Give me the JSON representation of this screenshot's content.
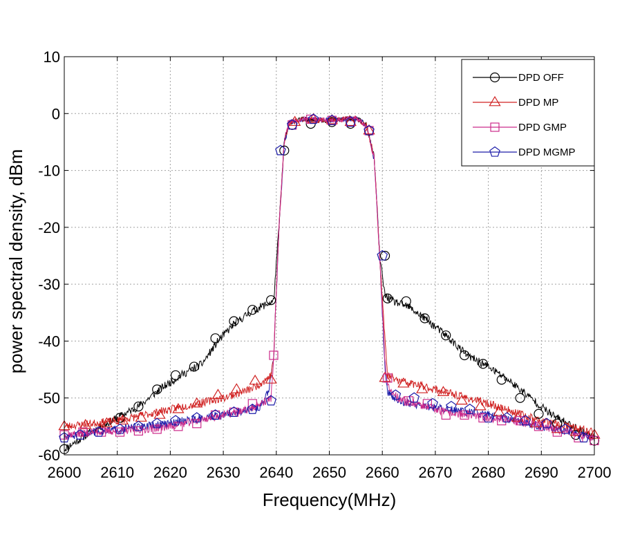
{
  "chart_data": {
    "type": "line",
    "xlabel": "Frequency(MHz)",
    "ylabel": "power spectral density, dBm",
    "xlim": [
      2600,
      2700
    ],
    "ylim": [
      -60,
      10
    ],
    "xticks": [
      2600,
      2610,
      2620,
      2630,
      2640,
      2650,
      2660,
      2670,
      2680,
      2690,
      2700
    ],
    "yticks": [
      10,
      0,
      -10,
      -20,
      -30,
      -40,
      -50,
      -60
    ],
    "grid": true,
    "legend_position": "top-right",
    "series": [
      {
        "name": "DPD OFF",
        "color": "#000000",
        "marker": "circle",
        "x": [
          2600,
          2605,
          2610,
          2614,
          2618,
          2622,
          2626,
          2629,
          2632,
          2635,
          2637,
          2639.5,
          2640.5,
          2641.5,
          2642.5,
          2645,
          2650,
          2655,
          2657,
          2658.5,
          2659.5,
          2660.5,
          2662,
          2665,
          2668,
          2672,
          2676,
          2680,
          2684,
          2688,
          2692,
          2696,
          2700
        ],
        "y": [
          -59,
          -56,
          -53.5,
          -51.5,
          -48.5,
          -46,
          -44,
          -40,
          -37,
          -35,
          -34,
          -33,
          -20,
          -5,
          -1.5,
          -1,
          -1.2,
          -0.8,
          -2,
          -8,
          -25,
          -32,
          -33,
          -34,
          -36,
          -39,
          -42.5,
          -44.5,
          -47,
          -50,
          -53,
          -55,
          -57
        ]
      },
      {
        "name": "DPD MP",
        "color": "#d02020",
        "marker": "triangle",
        "x": [
          2600,
          2605,
          2610,
          2615,
          2620,
          2625,
          2630,
          2635,
          2637,
          2639,
          2639.5,
          2640.5,
          2641.5,
          2642.5,
          2645,
          2650,
          2655,
          2657,
          2658.5,
          2659.5,
          2660.5,
          2661,
          2663,
          2668,
          2672,
          2676,
          2680,
          2685,
          2690,
          2695,
          2700
        ],
        "y": [
          -55,
          -54.5,
          -54,
          -53,
          -52,
          -51,
          -50,
          -48.5,
          -47.5,
          -46,
          -43,
          -20,
          -5,
          -1.5,
          -1,
          -1.2,
          -0.8,
          -2,
          -8,
          -25,
          -40,
          -46,
          -47,
          -48,
          -49,
          -50,
          -51,
          -52.5,
          -54,
          -55,
          -56
        ]
      },
      {
        "name": "DPD GMP",
        "color": "#cc2a8a",
        "marker": "square",
        "x": [
          2600,
          2605,
          2610,
          2615,
          2620,
          2625,
          2630,
          2635,
          2637,
          2639,
          2639.5,
          2640.5,
          2641.5,
          2642.5,
          2645,
          2650,
          2655,
          2657,
          2658.5,
          2659.5,
          2660.5,
          2661,
          2663,
          2668,
          2672,
          2676,
          2680,
          2685,
          2690,
          2695,
          2700
        ],
        "y": [
          -56.5,
          -56,
          -55.8,
          -55.5,
          -55,
          -54,
          -53,
          -52,
          -51,
          -50,
          -43,
          -20,
          -5,
          -1.5,
          -1,
          -1.2,
          -0.8,
          -2,
          -8,
          -25,
          -44,
          -48,
          -50,
          -51.5,
          -52.5,
          -53,
          -53.5,
          -54,
          -55,
          -56,
          -57
        ]
      },
      {
        "name": "DPD MGMP",
        "color": "#1a1aa8",
        "marker": "pentagon",
        "x": [
          2600,
          2605,
          2610,
          2615,
          2620,
          2625,
          2630,
          2635,
          2637,
          2638.5,
          2639.5,
          2640.5,
          2641.5,
          2642.5,
          2645,
          2650,
          2655,
          2657,
          2658.5,
          2659.5,
          2660.5,
          2661,
          2663,
          2668,
          2672,
          2676,
          2680,
          2685,
          2690,
          2695,
          2700
        ],
        "y": [
          -57,
          -56,
          -55.5,
          -55,
          -54.5,
          -53.5,
          -53,
          -52,
          -51.5,
          -49,
          -43,
          -20,
          -5,
          -1.5,
          -1,
          -1.2,
          -0.8,
          -2,
          -8,
          -25,
          -45,
          -49,
          -50.5,
          -51.5,
          -52,
          -52.5,
          -53,
          -54,
          -55,
          -56,
          -57
        ]
      }
    ],
    "markers": [
      {
        "series": 0,
        "x": [
          2600,
          2610.5,
          2614,
          2617.5,
          2621,
          2624.5,
          2628.5,
          2632,
          2635.5,
          2639,
          2641.5,
          2643,
          2646.5,
          2650.5,
          2654,
          2657.5,
          2660.5,
          2661,
          2664.5,
          2668,
          2672,
          2675.5,
          2679,
          2682.5,
          2686,
          2689.5,
          2693,
          2696.5,
          2700
        ],
        "y": [
          -59,
          -53.5,
          -51.5,
          -48.5,
          -46,
          -44.5,
          -39.5,
          -36.5,
          -34.5,
          -32.8,
          -6.5,
          -2,
          -1.8,
          -1.5,
          -1.8,
          -3,
          -25,
          -32.5,
          -33,
          -36,
          -39,
          -42.5,
          -44,
          -46.8,
          -50,
          -52.8,
          -54.5,
          -56.5,
          -57.5
        ]
      },
      {
        "series": 1,
        "x": [
          2600,
          2604,
          2608,
          2611,
          2614.5,
          2618,
          2621.5,
          2625,
          2629,
          2632.5,
          2636,
          2639,
          2643.5,
          2647,
          2650.5,
          2654,
          2657.5,
          2660.5,
          2664,
          2667.5,
          2671.5,
          2675,
          2678.5,
          2682,
          2685.5,
          2689,
          2693,
          2696.5,
          2700
        ],
        "y": [
          -55,
          -54.8,
          -54.5,
          -54,
          -53.5,
          -53,
          -52,
          -51,
          -49.5,
          -48.5,
          -47,
          -46.8,
          -1.5,
          -1,
          -1.2,
          -1.5,
          -3,
          -46.5,
          -47.5,
          -48.5,
          -49,
          -50.5,
          -51.5,
          -52.5,
          -53.5,
          -54.5,
          -55.5,
          -56,
          -56.5
        ]
      },
      {
        "series": 2,
        "x": [
          2600,
          2603.5,
          2607,
          2610.5,
          2614,
          2617.5,
          2621.5,
          2625,
          2628.5,
          2632,
          2635.5,
          2639.5,
          2643,
          2646.5,
          2650.5,
          2654,
          2657.5,
          2661,
          2665,
          2668.5,
          2672,
          2675.5,
          2679,
          2682.5,
          2686,
          2689.5,
          2693,
          2697,
          2700
        ],
        "y": [
          -56.5,
          -56,
          -56,
          -56,
          -55.8,
          -55.5,
          -55,
          -54.5,
          -53,
          -52.5,
          -51,
          -42.5,
          -2,
          -1,
          -1.2,
          -1.5,
          -3,
          -46.5,
          -50.5,
          -51,
          -53,
          -53,
          -53.5,
          -54,
          -54,
          -55,
          -56,
          -57,
          -57.5
        ]
      },
      {
        "series": 3,
        "x": [
          2600,
          2603,
          2606.5,
          2610.5,
          2614,
          2617.5,
          2621,
          2625,
          2628.5,
          2632,
          2635.5,
          2639,
          2640.8,
          2643,
          2647,
          2650.5,
          2654,
          2657.5,
          2660,
          2662.5,
          2666,
          2669.5,
          2673,
          2676.5,
          2680,
          2683.5,
          2687,
          2691,
          2694.5,
          2698
        ],
        "y": [
          -57,
          -56.5,
          -56,
          -55.5,
          -55,
          -54.5,
          -54,
          -53.5,
          -53,
          -52.5,
          -52,
          -50.5,
          -6.5,
          -2,
          -1,
          -1.2,
          -1.5,
          -3,
          -25,
          -49.5,
          -50,
          -51,
          -51.5,
          -52,
          -53.5,
          -53.5,
          -54,
          -54.5,
          -55.5,
          -57
        ]
      }
    ]
  }
}
